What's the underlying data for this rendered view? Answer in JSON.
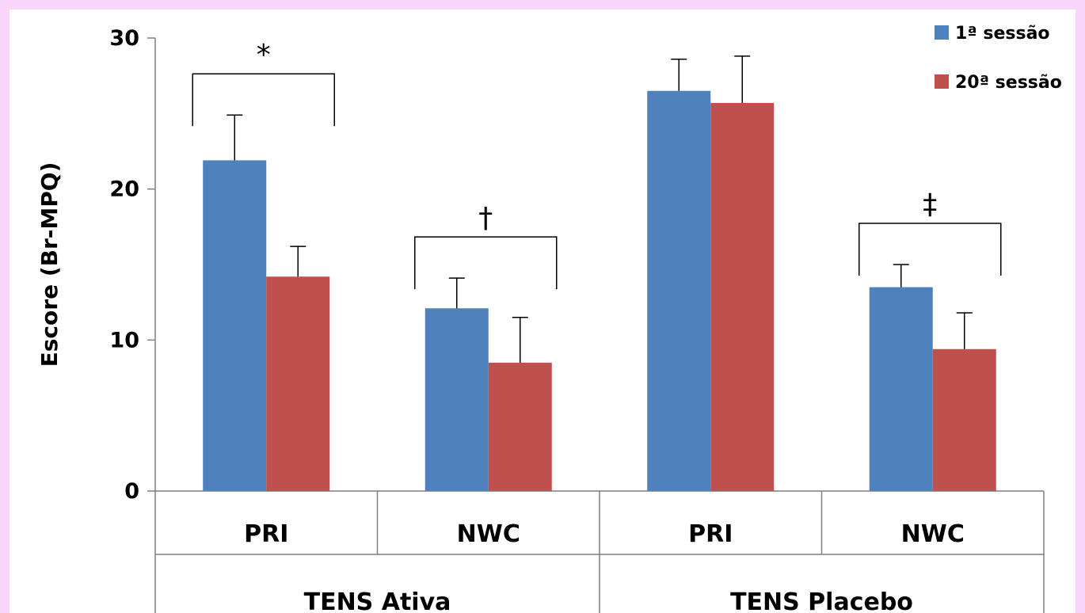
{
  "chart_data": {
    "type": "bar",
    "ylabel": "Escore (Br-MPQ)",
    "ylim": [
      0,
      30
    ],
    "yticks": [
      "0",
      "10",
      "20",
      "30"
    ],
    "groups": [
      {
        "label": "TENS Ativa",
        "categories": [
          "PRI",
          "NWC"
        ]
      },
      {
        "label": "TENS Placebo",
        "categories": [
          "PRI",
          "NWC"
        ]
      }
    ],
    "categories": [
      "PRI",
      "NWC",
      "PRI",
      "NWC"
    ],
    "series": [
      {
        "name": "1ª sessão",
        "color": "#4f81bd",
        "values": [
          21.9,
          12.1,
          26.5,
          13.5
        ],
        "errors": [
          3.0,
          2.0,
          2.1,
          1.5
        ]
      },
      {
        "name": "20ª sessão",
        "color": "#c0504d",
        "values": [
          14.2,
          8.5,
          25.7,
          9.4
        ],
        "errors": [
          2.0,
          3.0,
          3.1,
          2.4
        ]
      }
    ],
    "annotations": [
      {
        "category_index": 0,
        "symbol": "*"
      },
      {
        "category_index": 1,
        "symbol": "†"
      },
      {
        "category_index": 3,
        "symbol": "‡"
      }
    ],
    "legend_position": "top-right"
  }
}
